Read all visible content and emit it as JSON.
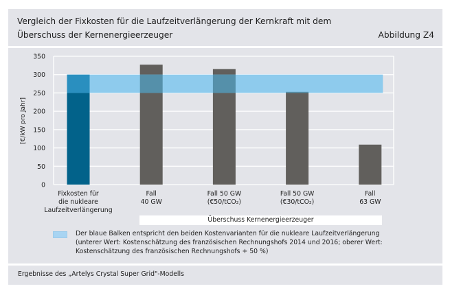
{
  "header": {
    "title": "Vergleich der Fixkosten für die Laufzeitverlängerung der Kernkraft mit dem Überschuss der Kernenergieerzeuger",
    "figure_label": "Abbildung Z4"
  },
  "colors": {
    "fixcost_bar": "#02628a",
    "fixcost_overlap": "#2a8fbf",
    "surplus_bar": "#615f5c",
    "band": "#8ecbed",
    "band_overlap": "#5590aa",
    "panel_bg": "#e3e4e9",
    "grid": "#ffffff"
  },
  "chart_data": {
    "type": "bar",
    "title": "Vergleich der Fixkosten für die Laufzeitverlängerung der Kernkraft mit dem Überschuss der Kernenergieerzeuger",
    "ylabel": "[€/kW pro Jahr]",
    "xlabel": "",
    "ylim": [
      0,
      350
    ],
    "yticks": [
      0,
      50,
      100,
      150,
      200,
      250,
      300,
      350
    ],
    "grid": true,
    "categories": [
      [
        "Fixkosten für",
        "die nukleare",
        "Laufzeitverlängerung"
      ],
      [
        "Fall",
        "40 GW"
      ],
      [
        "Fall 50 GW",
        "(€50/tCO₂)"
      ],
      [
        "Fall 50 GW",
        "(€30/tCO₂)"
      ],
      [
        "Fall",
        "63 GW"
      ]
    ],
    "series": [
      {
        "name": "Fixkosten Laufzeitverlängerung (unterer Wert)",
        "values": [
          250,
          null,
          null,
          null,
          null
        ]
      },
      {
        "name": "Überschuss Kernenergieerzeuger",
        "values": [
          null,
          327,
          315,
          253,
          109
        ]
      }
    ],
    "band": {
      "name": "Spanne der Kostenvarianten",
      "low": 250,
      "high": 300
    },
    "category_group_label": "Überschuss Kernenergieerzeuger",
    "legend": [
      {
        "label": "Der blaue Balken entspricht den beiden Kostenvarianten für die nukleare Laufzeitverlängerung (unterer Wert: Kostenschätzung des französischen Rechnungshofs 2014 und 2016; oberer Wert: Kostenschätzung des französischen Rechnungshofs + 50 %)"
      }
    ],
    "legend_position": "bottom"
  },
  "footer": {
    "source": "Ergebnisse des „Artelys Crystal Super Grid\"-Modells"
  }
}
